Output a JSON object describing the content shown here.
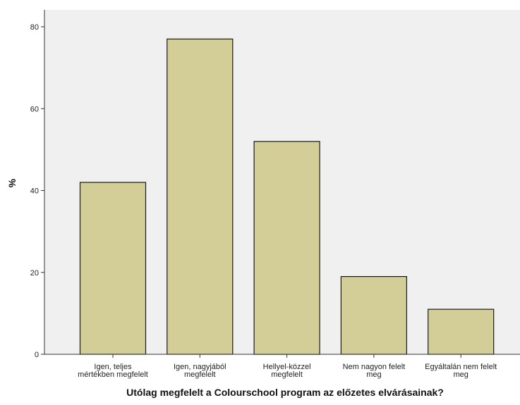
{
  "chart_data": {
    "type": "bar",
    "categories": [
      [
        "Igen, teljes",
        "mértékben megfelelt"
      ],
      [
        "Igen, nagyjából",
        "megfelelt"
      ],
      [
        "Hellyel-közzel",
        "megfelelt"
      ],
      [
        "Nem nagyon felelt",
        "meg"
      ],
      [
        "Egyáltalán nem felelt",
        "meg"
      ]
    ],
    "values": [
      42,
      77,
      52,
      19,
      11
    ],
    "title": "",
    "xlabel": "Utólag megfelelt a Colourschool program az előzetes elvárásainak?",
    "ylabel": "%",
    "ylim": [
      0,
      85
    ],
    "yticks": [
      0,
      20,
      40,
      60,
      80
    ],
    "grid": false,
    "colors": {
      "bar_fill": "#d3ce98",
      "bar_stroke": "#1a1a1a",
      "plot_background": "#f0f0f0",
      "axis": "#333333"
    }
  }
}
